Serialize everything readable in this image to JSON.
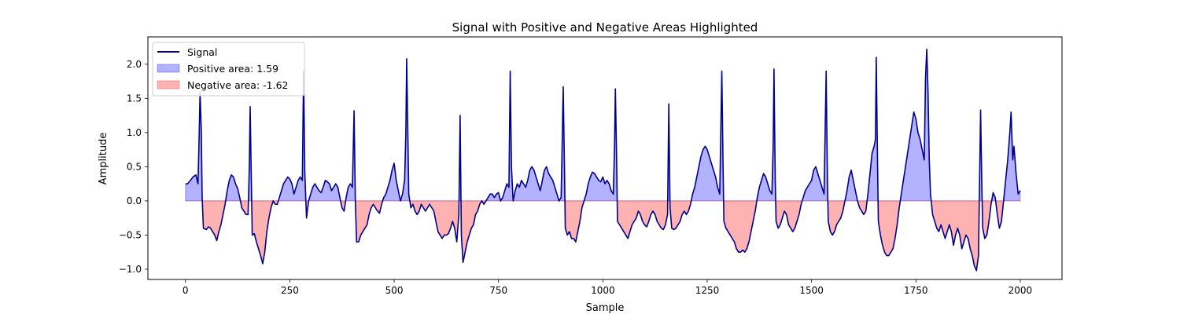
{
  "chart_data": {
    "type": "area",
    "title": "Signal with Positive and Negative Areas Highlighted",
    "xlabel": "Sample",
    "ylabel": "Amplitude",
    "xlim": [
      -90,
      2100
    ],
    "ylim": [
      -1.15,
      2.4
    ],
    "xticks": [
      0,
      250,
      500,
      750,
      1000,
      1250,
      1500,
      1750,
      2000
    ],
    "yticks": [
      -1.0,
      -0.5,
      0.0,
      0.5,
      1.0,
      1.5,
      2.0
    ],
    "grid": false,
    "legend_position": "top-left",
    "series": [
      {
        "name": "Signal",
        "kind": "line",
        "color": "#00008b"
      },
      {
        "name": "Positive area: 1.59",
        "kind": "fill",
        "color": "#0000ff",
        "alpha": 0.3
      },
      {
        "name": "Negative area: -1.62",
        "kind": "fill",
        "color": "#ff0000",
        "alpha": 0.3
      }
    ],
    "signal_points": [
      [
        0,
        0.25
      ],
      [
        5,
        0.25
      ],
      [
        12,
        0.3
      ],
      [
        18,
        0.35
      ],
      [
        25,
        0.38
      ],
      [
        30,
        0.25
      ],
      [
        33,
        1.0
      ],
      [
        35,
        1.6
      ],
      [
        38,
        1.0
      ],
      [
        40,
        0.05
      ],
      [
        43,
        -0.4
      ],
      [
        50,
        -0.42
      ],
      [
        55,
        -0.38
      ],
      [
        60,
        -0.4
      ],
      [
        65,
        -0.45
      ],
      [
        70,
        -0.5
      ],
      [
        75,
        -0.58
      ],
      [
        80,
        -0.45
      ],
      [
        85,
        -0.35
      ],
      [
        90,
        -0.2
      ],
      [
        95,
        -0.05
      ],
      [
        100,
        0.15
      ],
      [
        105,
        0.3
      ],
      [
        110,
        0.38
      ],
      [
        115,
        0.35
      ],
      [
        120,
        0.25
      ],
      [
        125,
        0.18
      ],
      [
        130,
        0.05
      ],
      [
        135,
        -0.1
      ],
      [
        140,
        -0.15
      ],
      [
        145,
        -0.2
      ],
      [
        150,
        -0.2
      ],
      [
        153,
        0.5
      ],
      [
        155,
        1.38
      ],
      [
        157,
        0.6
      ],
      [
        160,
        -0.5
      ],
      [
        165,
        -0.48
      ],
      [
        170,
        -0.6
      ],
      [
        175,
        -0.7
      ],
      [
        180,
        -0.8
      ],
      [
        185,
        -0.92
      ],
      [
        190,
        -0.75
      ],
      [
        195,
        -0.45
      ],
      [
        200,
        -0.25
      ],
      [
        205,
        -0.1
      ],
      [
        210,
        0.0
      ],
      [
        215,
        -0.05
      ],
      [
        220,
        -0.05
      ],
      [
        225,
        0.05
      ],
      [
        230,
        0.15
      ],
      [
        235,
        0.25
      ],
      [
        240,
        0.3
      ],
      [
        245,
        0.35
      ],
      [
        250,
        0.32
      ],
      [
        255,
        0.25
      ],
      [
        260,
        0.1
      ],
      [
        265,
        0.2
      ],
      [
        270,
        0.3
      ],
      [
        275,
        0.35
      ],
      [
        280,
        0.3
      ],
      [
        283,
        1.9
      ],
      [
        286,
        0.4
      ],
      [
        290,
        -0.25
      ],
      [
        295,
        0.0
      ],
      [
        300,
        0.1
      ],
      [
        305,
        0.2
      ],
      [
        310,
        0.25
      ],
      [
        315,
        0.2
      ],
      [
        320,
        0.15
      ],
      [
        325,
        0.12
      ],
      [
        330,
        0.2
      ],
      [
        335,
        0.3
      ],
      [
        340,
        0.28
      ],
      [
        345,
        0.25
      ],
      [
        350,
        0.15
      ],
      [
        355,
        0.2
      ],
      [
        360,
        0.25
      ],
      [
        365,
        0.2
      ],
      [
        370,
        0.05
      ],
      [
        375,
        -0.1
      ],
      [
        380,
        -0.15
      ],
      [
        385,
        0.05
      ],
      [
        390,
        0.2
      ],
      [
        395,
        0.25
      ],
      [
        400,
        0.2
      ],
      [
        404,
        1.32
      ],
      [
        407,
        0.0
      ],
      [
        410,
        -0.6
      ],
      [
        415,
        -0.6
      ],
      [
        420,
        -0.5
      ],
      [
        425,
        -0.45
      ],
      [
        430,
        -0.4
      ],
      [
        435,
        -0.35
      ],
      [
        440,
        -0.2
      ],
      [
        445,
        -0.1
      ],
      [
        450,
        -0.05
      ],
      [
        455,
        -0.1
      ],
      [
        460,
        -0.15
      ],
      [
        465,
        -0.18
      ],
      [
        470,
        -0.05
      ],
      [
        475,
        0.05
      ],
      [
        480,
        0.1
      ],
      [
        485,
        0.2
      ],
      [
        490,
        0.3
      ],
      [
        495,
        0.45
      ],
      [
        500,
        0.55
      ],
      [
        505,
        0.3
      ],
      [
        510,
        0.15
      ],
      [
        515,
        0.0
      ],
      [
        520,
        0.1
      ],
      [
        525,
        0.3
      ],
      [
        528,
        1.0
      ],
      [
        530,
        2.08
      ],
      [
        533,
        0.9
      ],
      [
        535,
        0.1
      ],
      [
        540,
        -0.1
      ],
      [
        545,
        -0.05
      ],
      [
        550,
        -0.15
      ],
      [
        555,
        -0.2
      ],
      [
        560,
        -0.15
      ],
      [
        565,
        -0.05
      ],
      [
        570,
        -0.1
      ],
      [
        575,
        -0.15
      ],
      [
        580,
        -0.1
      ],
      [
        585,
        -0.05
      ],
      [
        590,
        -0.1
      ],
      [
        595,
        -0.15
      ],
      [
        600,
        -0.3
      ],
      [
        605,
        -0.45
      ],
      [
        610,
        -0.5
      ],
      [
        615,
        -0.55
      ],
      [
        620,
        -0.5
      ],
      [
        625,
        -0.5
      ],
      [
        630,
        -0.48
      ],
      [
        635,
        -0.4
      ],
      [
        640,
        -0.3
      ],
      [
        645,
        -0.4
      ],
      [
        650,
        -0.6
      ],
      [
        655,
        -0.2
      ],
      [
        658,
        1.25
      ],
      [
        661,
        -0.5
      ],
      [
        665,
        -0.9
      ],
      [
        670,
        -0.75
      ],
      [
        675,
        -0.6
      ],
      [
        680,
        -0.5
      ],
      [
        685,
        -0.4
      ],
      [
        690,
        -0.35
      ],
      [
        695,
        -0.2
      ],
      [
        700,
        -0.15
      ],
      [
        705,
        -0.05
      ],
      [
        710,
        0.0
      ],
      [
        715,
        -0.05
      ],
      [
        720,
        0.0
      ],
      [
        725,
        0.05
      ],
      [
        730,
        0.1
      ],
      [
        735,
        0.1
      ],
      [
        740,
        0.05
      ],
      [
        745,
        0.1
      ],
      [
        750,
        0.12
      ],
      [
        755,
        0.0
      ],
      [
        760,
        0.05
      ],
      [
        765,
        0.15
      ],
      [
        770,
        0.25
      ],
      [
        775,
        0.2
      ],
      [
        778,
        1.9
      ],
      [
        781,
        0.5
      ],
      [
        785,
        0.0
      ],
      [
        790,
        0.15
      ],
      [
        795,
        0.25
      ],
      [
        800,
        0.2
      ],
      [
        805,
        0.3
      ],
      [
        810,
        0.25
      ],
      [
        815,
        0.2
      ],
      [
        820,
        0.3
      ],
      [
        825,
        0.45
      ],
      [
        830,
        0.5
      ],
      [
        835,
        0.45
      ],
      [
        840,
        0.35
      ],
      [
        845,
        0.25
      ],
      [
        850,
        0.15
      ],
      [
        855,
        0.3
      ],
      [
        860,
        0.45
      ],
      [
        865,
        0.5
      ],
      [
        870,
        0.4
      ],
      [
        875,
        0.35
      ],
      [
        880,
        0.3
      ],
      [
        885,
        0.2
      ],
      [
        890,
        0.1
      ],
      [
        895,
        0.0
      ],
      [
        900,
        0.05
      ],
      [
        903,
        1.0
      ],
      [
        905,
        1.67
      ],
      [
        908,
        0.5
      ],
      [
        910,
        -0.4
      ],
      [
        915,
        -0.5
      ],
      [
        920,
        -0.45
      ],
      [
        925,
        -0.55
      ],
      [
        930,
        -0.55
      ],
      [
        935,
        -0.6
      ],
      [
        940,
        -0.45
      ],
      [
        945,
        -0.3
      ],
      [
        950,
        -0.1
      ],
      [
        955,
        0.0
      ],
      [
        960,
        0.1
      ],
      [
        965,
        0.25
      ],
      [
        970,
        0.35
      ],
      [
        975,
        0.42
      ],
      [
        980,
        0.4
      ],
      [
        985,
        0.35
      ],
      [
        990,
        0.3
      ],
      [
        995,
        0.28
      ],
      [
        1000,
        0.35
      ],
      [
        1005,
        0.25
      ],
      [
        1010,
        0.3
      ],
      [
        1015,
        0.25
      ],
      [
        1020,
        0.15
      ],
      [
        1025,
        0.1
      ],
      [
        1028,
        0.8
      ],
      [
        1030,
        1.64
      ],
      [
        1033,
        0.6
      ],
      [
        1035,
        -0.3
      ],
      [
        1040,
        -0.35
      ],
      [
        1045,
        -0.4
      ],
      [
        1050,
        -0.45
      ],
      [
        1055,
        -0.5
      ],
      [
        1060,
        -0.55
      ],
      [
        1065,
        -0.45
      ],
      [
        1070,
        -0.35
      ],
      [
        1075,
        -0.3
      ],
      [
        1080,
        -0.25
      ],
      [
        1085,
        -0.15
      ],
      [
        1090,
        -0.2
      ],
      [
        1095,
        -0.3
      ],
      [
        1100,
        -0.35
      ],
      [
        1105,
        -0.38
      ],
      [
        1110,
        -0.3
      ],
      [
        1115,
        -0.2
      ],
      [
        1120,
        -0.15
      ],
      [
        1125,
        -0.2
      ],
      [
        1130,
        -0.3
      ],
      [
        1135,
        -0.35
      ],
      [
        1140,
        -0.4
      ],
      [
        1145,
        -0.42
      ],
      [
        1150,
        -0.35
      ],
      [
        1155,
        -0.2
      ],
      [
        1158,
        1.42
      ],
      [
        1161,
        -0.1
      ],
      [
        1165,
        -0.4
      ],
      [
        1170,
        -0.42
      ],
      [
        1175,
        -0.4
      ],
      [
        1180,
        -0.35
      ],
      [
        1185,
        -0.3
      ],
      [
        1190,
        -0.2
      ],
      [
        1195,
        -0.15
      ],
      [
        1200,
        -0.2
      ],
      [
        1205,
        -0.15
      ],
      [
        1210,
        -0.05
      ],
      [
        1215,
        0.1
      ],
      [
        1220,
        0.2
      ],
      [
        1225,
        0.35
      ],
      [
        1230,
        0.5
      ],
      [
        1235,
        0.65
      ],
      [
        1240,
        0.75
      ],
      [
        1245,
        0.8
      ],
      [
        1250,
        0.75
      ],
      [
        1255,
        0.65
      ],
      [
        1260,
        0.55
      ],
      [
        1265,
        0.45
      ],
      [
        1270,
        0.35
      ],
      [
        1275,
        0.2
      ],
      [
        1280,
        0.1
      ],
      [
        1282,
        0.8
      ],
      [
        1285,
        1.9
      ],
      [
        1288,
        0.5
      ],
      [
        1290,
        -0.3
      ],
      [
        1295,
        -0.4
      ],
      [
        1300,
        -0.45
      ],
      [
        1305,
        -0.5
      ],
      [
        1310,
        -0.55
      ],
      [
        1315,
        -0.6
      ],
      [
        1320,
        -0.7
      ],
      [
        1325,
        -0.75
      ],
      [
        1330,
        -0.75
      ],
      [
        1335,
        -0.72
      ],
      [
        1340,
        -0.75
      ],
      [
        1345,
        -0.7
      ],
      [
        1350,
        -0.6
      ],
      [
        1355,
        -0.45
      ],
      [
        1360,
        -0.3
      ],
      [
        1365,
        -0.15
      ],
      [
        1370,
        0.05
      ],
      [
        1375,
        0.2
      ],
      [
        1380,
        0.3
      ],
      [
        1385,
        0.4
      ],
      [
        1390,
        0.35
      ],
      [
        1395,
        0.25
      ],
      [
        1400,
        0.15
      ],
      [
        1405,
        0.1
      ],
      [
        1408,
        0.8
      ],
      [
        1410,
        1.93
      ],
      [
        1413,
        0.3
      ],
      [
        1415,
        -0.3
      ],
      [
        1420,
        -0.4
      ],
      [
        1425,
        -0.35
      ],
      [
        1430,
        -0.25
      ],
      [
        1435,
        -0.15
      ],
      [
        1440,
        -0.2
      ],
      [
        1445,
        -0.35
      ],
      [
        1450,
        -0.4
      ],
      [
        1455,
        -0.45
      ],
      [
        1460,
        -0.4
      ],
      [
        1465,
        -0.3
      ],
      [
        1470,
        -0.2
      ],
      [
        1475,
        -0.05
      ],
      [
        1480,
        0.05
      ],
      [
        1485,
        0.15
      ],
      [
        1490,
        0.2
      ],
      [
        1495,
        0.25
      ],
      [
        1500,
        0.3
      ],
      [
        1505,
        0.45
      ],
      [
        1510,
        0.5
      ],
      [
        1515,
        0.4
      ],
      [
        1520,
        0.3
      ],
      [
        1525,
        0.2
      ],
      [
        1530,
        0.1
      ],
      [
        1535,
        1.9
      ],
      [
        1538,
        0.3
      ],
      [
        1540,
        -0.3
      ],
      [
        1545,
        -0.45
      ],
      [
        1550,
        -0.5
      ],
      [
        1555,
        -0.45
      ],
      [
        1560,
        -0.35
      ],
      [
        1565,
        -0.3
      ],
      [
        1570,
        -0.25
      ],
      [
        1575,
        -0.15
      ],
      [
        1580,
        0.0
      ],
      [
        1585,
        0.15
      ],
      [
        1590,
        0.35
      ],
      [
        1595,
        0.45
      ],
      [
        1600,
        0.3
      ],
      [
        1605,
        0.15
      ],
      [
        1610,
        0.0
      ],
      [
        1615,
        -0.1
      ],
      [
        1620,
        -0.15
      ],
      [
        1625,
        -0.2
      ],
      [
        1630,
        -0.15
      ],
      [
        1635,
        0.1
      ],
      [
        1640,
        0.4
      ],
      [
        1645,
        0.7
      ],
      [
        1650,
        0.8
      ],
      [
        1653,
        0.9
      ],
      [
        1655,
        2.1
      ],
      [
        1658,
        0.6
      ],
      [
        1660,
        -0.3
      ],
      [
        1665,
        -0.5
      ],
      [
        1670,
        -0.65
      ],
      [
        1675,
        -0.75
      ],
      [
        1680,
        -0.8
      ],
      [
        1685,
        -0.8
      ],
      [
        1690,
        -0.75
      ],
      [
        1695,
        -0.7
      ],
      [
        1700,
        -0.55
      ],
      [
        1705,
        -0.35
      ],
      [
        1710,
        -0.1
      ],
      [
        1715,
        0.1
      ],
      [
        1720,
        0.3
      ],
      [
        1725,
        0.5
      ],
      [
        1730,
        0.7
      ],
      [
        1735,
        0.9
      ],
      [
        1740,
        1.1
      ],
      [
        1745,
        1.3
      ],
      [
        1750,
        1.2
      ],
      [
        1755,
        1.0
      ],
      [
        1760,
        0.9
      ],
      [
        1765,
        0.75
      ],
      [
        1770,
        0.6
      ],
      [
        1773,
        1.8
      ],
      [
        1776,
        2.22
      ],
      [
        1779,
        1.6
      ],
      [
        1782,
        0.6
      ],
      [
        1785,
        0.1
      ],
      [
        1790,
        -0.2
      ],
      [
        1795,
        -0.3
      ],
      [
        1800,
        -0.4
      ],
      [
        1805,
        -0.45
      ],
      [
        1810,
        -0.35
      ],
      [
        1815,
        -0.45
      ],
      [
        1820,
        -0.55
      ],
      [
        1825,
        -0.45
      ],
      [
        1830,
        -0.35
      ],
      [
        1835,
        -0.45
      ],
      [
        1840,
        -0.65
      ],
      [
        1845,
        -0.5
      ],
      [
        1850,
        -0.4
      ],
      [
        1855,
        -0.5
      ],
      [
        1860,
        -0.7
      ],
      [
        1865,
        -0.6
      ],
      [
        1870,
        -0.5
      ],
      [
        1875,
        -0.55
      ],
      [
        1880,
        -0.7
      ],
      [
        1885,
        -0.8
      ],
      [
        1890,
        -0.95
      ],
      [
        1895,
        -1.02
      ],
      [
        1900,
        -0.8
      ],
      [
        1903,
        0.5
      ],
      [
        1905,
        1.33
      ],
      [
        1908,
        0.2
      ],
      [
        1910,
        -0.4
      ],
      [
        1915,
        -0.55
      ],
      [
        1920,
        -0.5
      ],
      [
        1925,
        -0.3
      ],
      [
        1930,
        -0.05
      ],
      [
        1935,
        0.12
      ],
      [
        1940,
        0.05
      ],
      [
        1945,
        -0.2
      ],
      [
        1950,
        -0.4
      ],
      [
        1955,
        -0.3
      ],
      [
        1960,
        0.0
      ],
      [
        1965,
        0.3
      ],
      [
        1970,
        0.6
      ],
      [
        1975,
        1.0
      ],
      [
        1978,
        1.3
      ],
      [
        1982,
        0.6
      ],
      [
        1985,
        0.8
      ],
      [
        1990,
        0.4
      ],
      [
        1995,
        0.1
      ],
      [
        2000,
        0.15
      ]
    ]
  }
}
